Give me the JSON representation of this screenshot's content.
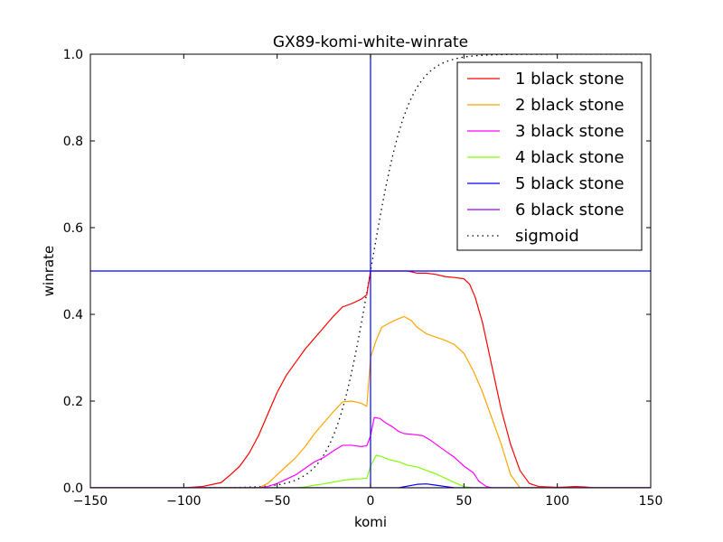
{
  "chart_data": {
    "type": "line",
    "title": "GX89-komi-white-winrate",
    "xlabel": "komi",
    "ylabel": "winrate",
    "xlim": [
      -150,
      150
    ],
    "ylim": [
      0.0,
      1.0
    ],
    "xticks": [
      -150,
      -100,
      -50,
      0,
      50,
      100,
      150
    ],
    "xtick_labels": [
      "−150",
      "−100",
      "−50",
      "0",
      "50",
      "100",
      "150"
    ],
    "yticks": [
      0.0,
      0.2,
      0.4,
      0.6,
      0.8,
      1.0
    ],
    "ytick_labels": [
      "0.0",
      "0.2",
      "0.4",
      "0.6",
      "0.8",
      "1.0"
    ],
    "grid": false,
    "legend_position": "top-right",
    "reference_lines": {
      "vertical_x": 0,
      "horizontal_y": 0.5,
      "color": "#0000ff"
    },
    "series": [
      {
        "name": "1 black stone",
        "color": "#ff0000",
        "style": "solid",
        "points": [
          [
            -150,
            0
          ],
          [
            -100,
            0.0
          ],
          [
            -90,
            0.003
          ],
          [
            -80,
            0.012
          ],
          [
            -75,
            0.03
          ],
          [
            -70,
            0.05
          ],
          [
            -65,
            0.08
          ],
          [
            -60,
            0.12
          ],
          [
            -55,
            0.17
          ],
          [
            -50,
            0.22
          ],
          [
            -45,
            0.26
          ],
          [
            -40,
            0.29
          ],
          [
            -35,
            0.32
          ],
          [
            -30,
            0.345
          ],
          [
            -25,
            0.37
          ],
          [
            -20,
            0.395
          ],
          [
            -15,
            0.417
          ],
          [
            -10,
            0.425
          ],
          [
            -5,
            0.435
          ],
          [
            -2,
            0.445
          ],
          [
            0,
            0.5
          ],
          [
            5,
            0.5
          ],
          [
            10,
            0.5
          ],
          [
            15,
            0.5
          ],
          [
            20,
            0.5
          ],
          [
            25,
            0.495
          ],
          [
            30,
            0.495
          ],
          [
            35,
            0.492
          ],
          [
            40,
            0.487
          ],
          [
            45,
            0.485
          ],
          [
            50,
            0.482
          ],
          [
            53,
            0.47
          ],
          [
            56,
            0.44
          ],
          [
            60,
            0.38
          ],
          [
            65,
            0.28
          ],
          [
            70,
            0.18
          ],
          [
            75,
            0.1
          ],
          [
            80,
            0.04
          ],
          [
            85,
            0.01
          ],
          [
            90,
            0.003
          ],
          [
            100,
            0.001
          ],
          [
            105,
            0.002
          ],
          [
            110,
            0.003
          ],
          [
            115,
            0.002
          ],
          [
            120,
            0.0
          ],
          [
            150,
            0.0
          ]
        ]
      },
      {
        "name": "2 black stone",
        "color": "#ffa500",
        "style": "solid",
        "points": [
          [
            -150,
            0
          ],
          [
            -60,
            0.0
          ],
          [
            -55,
            0.01
          ],
          [
            -50,
            0.03
          ],
          [
            -45,
            0.05
          ],
          [
            -40,
            0.07
          ],
          [
            -35,
            0.095
          ],
          [
            -30,
            0.125
          ],
          [
            -25,
            0.15
          ],
          [
            -20,
            0.175
          ],
          [
            -15,
            0.198
          ],
          [
            -10,
            0.2
          ],
          [
            -5,
            0.195
          ],
          [
            -2,
            0.188
          ],
          [
            0,
            0.3
          ],
          [
            3,
            0.34
          ],
          [
            6,
            0.37
          ],
          [
            10,
            0.38
          ],
          [
            15,
            0.39
          ],
          [
            18,
            0.395
          ],
          [
            22,
            0.385
          ],
          [
            25,
            0.37
          ],
          [
            30,
            0.355
          ],
          [
            40,
            0.34
          ],
          [
            45,
            0.33
          ],
          [
            50,
            0.31
          ],
          [
            55,
            0.27
          ],
          [
            60,
            0.22
          ],
          [
            65,
            0.16
          ],
          [
            70,
            0.1
          ],
          [
            75,
            0.03
          ],
          [
            80,
            0.0
          ],
          [
            150,
            0.0
          ]
        ]
      },
      {
        "name": "3 black stone",
        "color": "#ff00ff",
        "style": "solid",
        "points": [
          [
            -150,
            0
          ],
          [
            -60,
            0.0
          ],
          [
            -55,
            0.003
          ],
          [
            -50,
            0.01
          ],
          [
            -45,
            0.02
          ],
          [
            -40,
            0.03
          ],
          [
            -35,
            0.045
          ],
          [
            -30,
            0.06
          ],
          [
            -25,
            0.07
          ],
          [
            -20,
            0.085
          ],
          [
            -15,
            0.098
          ],
          [
            -10,
            0.098
          ],
          [
            -5,
            0.095
          ],
          [
            -2,
            0.097
          ],
          [
            0,
            0.12
          ],
          [
            2,
            0.162
          ],
          [
            5,
            0.16
          ],
          [
            8,
            0.15
          ],
          [
            12,
            0.14
          ],
          [
            15,
            0.13
          ],
          [
            18,
            0.125
          ],
          [
            25,
            0.122
          ],
          [
            28,
            0.12
          ],
          [
            32,
            0.11
          ],
          [
            40,
            0.085
          ],
          [
            45,
            0.07
          ],
          [
            50,
            0.05
          ],
          [
            55,
            0.035
          ],
          [
            58,
            0.015
          ],
          [
            62,
            0.003
          ],
          [
            65,
            0.0
          ],
          [
            150,
            0.0
          ]
        ]
      },
      {
        "name": "4 black stone",
        "color": "#80ff00",
        "style": "solid",
        "points": [
          [
            -150,
            0
          ],
          [
            -40,
            0.0
          ],
          [
            -35,
            0.002
          ],
          [
            -30,
            0.006
          ],
          [
            -25,
            0.009
          ],
          [
            -20,
            0.013
          ],
          [
            -15,
            0.017
          ],
          [
            -10,
            0.02
          ],
          [
            -5,
            0.021
          ],
          [
            -2,
            0.022
          ],
          [
            0,
            0.05
          ],
          [
            3,
            0.075
          ],
          [
            6,
            0.072
          ],
          [
            10,
            0.065
          ],
          [
            15,
            0.06
          ],
          [
            20,
            0.052
          ],
          [
            25,
            0.048
          ],
          [
            30,
            0.04
          ],
          [
            35,
            0.032
          ],
          [
            40,
            0.022
          ],
          [
            45,
            0.012
          ],
          [
            50,
            0.003
          ],
          [
            55,
            0.0
          ],
          [
            150,
            0.0
          ]
        ]
      },
      {
        "name": "5 black stone",
        "color": "#0000ff",
        "style": "solid",
        "points": [
          [
            -150,
            0
          ],
          [
            15,
            0.0
          ],
          [
            20,
            0.004
          ],
          [
            25,
            0.008
          ],
          [
            30,
            0.009
          ],
          [
            35,
            0.006
          ],
          [
            40,
            0.003
          ],
          [
            45,
            0.0
          ],
          [
            150,
            0.0
          ]
        ]
      },
      {
        "name": "6 black stone",
        "color": "#9900ff",
        "style": "solid",
        "points": [
          [
            -150,
            0
          ],
          [
            150,
            0
          ]
        ]
      },
      {
        "name": "sigmoid",
        "color": "#000000",
        "style": "dotted",
        "function": "sigmoid",
        "scale": 10
      }
    ]
  }
}
